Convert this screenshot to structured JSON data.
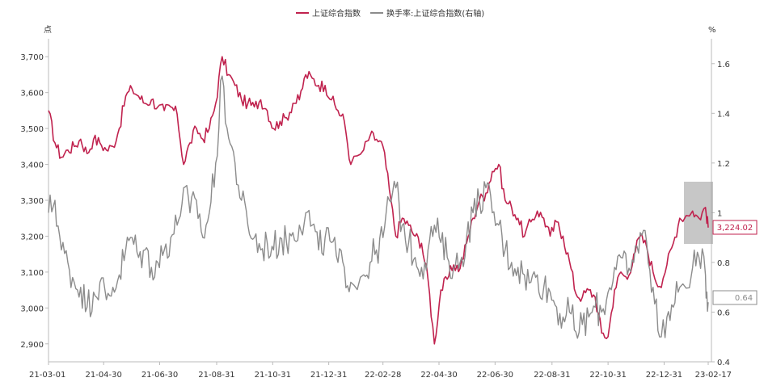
{
  "chart_data": {
    "type": "line",
    "legend_position": "top-center",
    "grid": false,
    "left_axis": {
      "unit": "点",
      "ylim": [
        2850,
        3750
      ],
      "ticks": [
        2900,
        3000,
        3100,
        3200,
        3300,
        3400,
        3500,
        3600,
        3700
      ],
      "tick_labels": [
        "2,900",
        "3,000",
        "3,100",
        "3,200",
        "3,300",
        "3,400",
        "3,500",
        "3,600",
        "3,700"
      ]
    },
    "right_axis": {
      "unit": "%",
      "ylim": [
        0.4,
        1.7
      ],
      "ticks": [
        0.4,
        0.6,
        0.8,
        1.0,
        1.2,
        1.4,
        1.6
      ],
      "tick_labels": [
        "0.4",
        "0.6",
        "0.8",
        "1",
        "1.2",
        "1.4",
        "1.6"
      ]
    },
    "x_tick_labels": [
      "21-03-01",
      "21-04-30",
      "21-06-30",
      "21-08-31",
      "21-10-31",
      "21-12-31",
      "22-02-28",
      "22-04-30",
      "22-06-30",
      "22-08-31",
      "22-10-31",
      "22-12-31",
      "23-02-17"
    ],
    "x_tick_dates": [
      "2021-03-01",
      "2021-04-30",
      "2021-06-30",
      "2021-08-31",
      "2021-10-31",
      "2021-12-31",
      "2022-02-28",
      "2022-04-30",
      "2022-06-30",
      "2022-08-31",
      "2022-10-31",
      "2022-12-31",
      "2023-02-17"
    ],
    "series": [
      {
        "name": "上证综合指数",
        "axis": "left",
        "color": "#c0224e",
        "last_value_label": "3,224.02",
        "points": [
          [
            "2021-03-01",
            3550
          ],
          [
            "2021-03-08",
            3460
          ],
          [
            "2021-03-15",
            3420
          ],
          [
            "2021-03-22",
            3440
          ],
          [
            "2021-03-29",
            3450
          ],
          [
            "2021-04-05",
            3470
          ],
          [
            "2021-04-12",
            3430
          ],
          [
            "2021-04-19",
            3470
          ],
          [
            "2021-04-26",
            3460
          ],
          [
            "2021-05-03",
            3440
          ],
          [
            "2021-05-10",
            3450
          ],
          [
            "2021-05-17",
            3500
          ],
          [
            "2021-05-24",
            3590
          ],
          [
            "2021-05-31",
            3610
          ],
          [
            "2021-06-07",
            3590
          ],
          [
            "2021-06-14",
            3570
          ],
          [
            "2021-06-21",
            3580
          ],
          [
            "2021-06-28",
            3560
          ],
          [
            "2021-07-05",
            3550
          ],
          [
            "2021-07-12",
            3560
          ],
          [
            "2021-07-19",
            3540
          ],
          [
            "2021-07-26",
            3400
          ],
          [
            "2021-08-02",
            3460
          ],
          [
            "2021-08-09",
            3500
          ],
          [
            "2021-08-16",
            3470
          ],
          [
            "2021-08-23",
            3500
          ],
          [
            "2021-08-30",
            3570
          ],
          [
            "2021-09-06",
            3700
          ],
          [
            "2021-09-13",
            3650
          ],
          [
            "2021-09-20",
            3620
          ],
          [
            "2021-09-27",
            3580
          ],
          [
            "2021-10-04",
            3570
          ],
          [
            "2021-10-11",
            3560
          ],
          [
            "2021-10-18",
            3580
          ],
          [
            "2021-10-25",
            3550
          ],
          [
            "2021-11-01",
            3500
          ],
          [
            "2021-11-08",
            3520
          ],
          [
            "2021-11-15",
            3530
          ],
          [
            "2021-11-22",
            3570
          ],
          [
            "2021-11-29",
            3580
          ],
          [
            "2021-12-06",
            3650
          ],
          [
            "2021-12-13",
            3640
          ],
          [
            "2021-12-20",
            3620
          ],
          [
            "2021-12-27",
            3620
          ],
          [
            "2022-01-03",
            3580
          ],
          [
            "2022-01-10",
            3550
          ],
          [
            "2022-01-17",
            3520
          ],
          [
            "2022-01-24",
            3400
          ],
          [
            "2022-02-07",
            3440
          ],
          [
            "2022-02-14",
            3480
          ],
          [
            "2022-02-21",
            3470
          ],
          [
            "2022-02-28",
            3450
          ],
          [
            "2022-03-07",
            3330
          ],
          [
            "2022-03-14",
            3200
          ],
          [
            "2022-03-21",
            3250
          ],
          [
            "2022-03-28",
            3230
          ],
          [
            "2022-04-04",
            3200
          ],
          [
            "2022-04-11",
            3180
          ],
          [
            "2022-04-18",
            3080
          ],
          [
            "2022-04-25",
            2900
          ],
          [
            "2022-05-02",
            3050
          ],
          [
            "2022-05-09",
            3080
          ],
          [
            "2022-05-16",
            3120
          ],
          [
            "2022-05-23",
            3110
          ],
          [
            "2022-05-30",
            3180
          ],
          [
            "2022-06-06",
            3250
          ],
          [
            "2022-06-13",
            3300
          ],
          [
            "2022-06-20",
            3320
          ],
          [
            "2022-06-27",
            3380
          ],
          [
            "2022-07-04",
            3400
          ],
          [
            "2022-07-11",
            3300
          ],
          [
            "2022-07-18",
            3280
          ],
          [
            "2022-07-25",
            3250
          ],
          [
            "2022-08-01",
            3200
          ],
          [
            "2022-08-08",
            3240
          ],
          [
            "2022-08-15",
            3270
          ],
          [
            "2022-08-22",
            3250
          ],
          [
            "2022-08-29",
            3200
          ],
          [
            "2022-09-05",
            3240
          ],
          [
            "2022-09-12",
            3200
          ],
          [
            "2022-09-19",
            3130
          ],
          [
            "2022-09-26",
            3040
          ],
          [
            "2022-10-03",
            3030
          ],
          [
            "2022-10-10",
            3050
          ],
          [
            "2022-10-17",
            3030
          ],
          [
            "2022-10-24",
            2930
          ],
          [
            "2022-10-31",
            2920
          ],
          [
            "2022-11-07",
            3050
          ],
          [
            "2022-11-14",
            3100
          ],
          [
            "2022-11-21",
            3080
          ],
          [
            "2022-11-28",
            3150
          ],
          [
            "2022-12-05",
            3200
          ],
          [
            "2022-12-12",
            3170
          ],
          [
            "2022-12-19",
            3100
          ],
          [
            "2022-12-26",
            3060
          ],
          [
            "2023-01-03",
            3120
          ],
          [
            "2023-01-10",
            3180
          ],
          [
            "2023-01-17",
            3250
          ],
          [
            "2023-01-31",
            3270
          ],
          [
            "2023-02-07",
            3250
          ],
          [
            "2023-02-14",
            3280
          ],
          [
            "2023-02-17",
            3224.02
          ]
        ]
      },
      {
        "name": "换手率:上证综合指数(右轴)",
        "axis": "right",
        "color": "#8c8c8c",
        "last_value_label": "0.64",
        "points": [
          [
            "2021-03-01",
            1.0
          ],
          [
            "2021-03-08",
            1.05
          ],
          [
            "2021-03-15",
            0.85
          ],
          [
            "2021-03-22",
            0.8
          ],
          [
            "2021-03-29",
            0.72
          ],
          [
            "2021-04-05",
            0.7
          ],
          [
            "2021-04-12",
            0.62
          ],
          [
            "2021-04-19",
            0.68
          ],
          [
            "2021-04-26",
            0.72
          ],
          [
            "2021-05-03",
            0.65
          ],
          [
            "2021-05-10",
            0.7
          ],
          [
            "2021-05-17",
            0.75
          ],
          [
            "2021-05-24",
            0.85
          ],
          [
            "2021-05-31",
            0.9
          ],
          [
            "2021-06-07",
            0.82
          ],
          [
            "2021-06-14",
            0.85
          ],
          [
            "2021-06-21",
            0.78
          ],
          [
            "2021-06-28",
            0.8
          ],
          [
            "2021-07-05",
            0.85
          ],
          [
            "2021-07-12",
            0.9
          ],
          [
            "2021-07-19",
            0.95
          ],
          [
            "2021-07-26",
            1.1
          ],
          [
            "2021-08-02",
            1.0
          ],
          [
            "2021-08-09",
            1.05
          ],
          [
            "2021-08-16",
            0.9
          ],
          [
            "2021-08-23",
            1.0
          ],
          [
            "2021-08-30",
            1.2
          ],
          [
            "2021-09-06",
            1.55
          ],
          [
            "2021-09-13",
            1.3
          ],
          [
            "2021-09-20",
            1.2
          ],
          [
            "2021-09-27",
            1.05
          ],
          [
            "2021-10-04",
            0.95
          ],
          [
            "2021-10-11",
            0.9
          ],
          [
            "2021-10-18",
            0.85
          ],
          [
            "2021-10-25",
            0.88
          ],
          [
            "2021-11-01",
            0.85
          ],
          [
            "2021-11-08",
            0.9
          ],
          [
            "2021-11-15",
            0.88
          ],
          [
            "2021-11-22",
            0.92
          ],
          [
            "2021-11-29",
            0.95
          ],
          [
            "2021-12-06",
            1.0
          ],
          [
            "2021-12-13",
            0.95
          ],
          [
            "2021-12-20",
            0.85
          ],
          [
            "2021-12-27",
            0.9
          ],
          [
            "2022-01-03",
            0.88
          ],
          [
            "2022-01-10",
            0.8
          ],
          [
            "2022-01-17",
            0.78
          ],
          [
            "2022-01-24",
            0.72
          ],
          [
            "2022-02-07",
            0.75
          ],
          [
            "2022-02-14",
            0.8
          ],
          [
            "2022-02-21",
            0.85
          ],
          [
            "2022-02-28",
            0.9
          ],
          [
            "2022-03-07",
            1.05
          ],
          [
            "2022-03-14",
            1.1
          ],
          [
            "2022-03-21",
            0.95
          ],
          [
            "2022-03-28",
            0.88
          ],
          [
            "2022-04-04",
            0.82
          ],
          [
            "2022-04-11",
            0.78
          ],
          [
            "2022-04-18",
            0.85
          ],
          [
            "2022-04-25",
            0.95
          ],
          [
            "2022-05-02",
            0.88
          ],
          [
            "2022-05-09",
            0.82
          ],
          [
            "2022-05-16",
            0.78
          ],
          [
            "2022-05-23",
            0.8
          ],
          [
            "2022-05-30",
            0.9
          ],
          [
            "2022-06-06",
            1.0
          ],
          [
            "2022-06-13",
            1.05
          ],
          [
            "2022-06-20",
            1.1
          ],
          [
            "2022-06-27",
            1.0
          ],
          [
            "2022-07-04",
            0.95
          ],
          [
            "2022-07-11",
            0.85
          ],
          [
            "2022-07-18",
            0.8
          ],
          [
            "2022-07-25",
            0.78
          ],
          [
            "2022-08-01",
            0.75
          ],
          [
            "2022-08-08",
            0.72
          ],
          [
            "2022-08-15",
            0.75
          ],
          [
            "2022-08-22",
            0.7
          ],
          [
            "2022-08-29",
            0.68
          ],
          [
            "2022-09-05",
            0.62
          ],
          [
            "2022-09-12",
            0.58
          ],
          [
            "2022-09-19",
            0.6
          ],
          [
            "2022-09-26",
            0.52
          ],
          [
            "2022-10-03",
            0.55
          ],
          [
            "2022-10-10",
            0.58
          ],
          [
            "2022-10-17",
            0.62
          ],
          [
            "2022-10-24",
            0.6
          ],
          [
            "2022-10-31",
            0.68
          ],
          [
            "2022-11-07",
            0.78
          ],
          [
            "2022-11-14",
            0.82
          ],
          [
            "2022-11-21",
            0.75
          ],
          [
            "2022-11-28",
            0.8
          ],
          [
            "2022-12-05",
            0.92
          ],
          [
            "2022-12-12",
            0.88
          ],
          [
            "2022-12-19",
            0.7
          ],
          [
            "2022-12-26",
            0.5
          ],
          [
            "2023-01-03",
            0.58
          ],
          [
            "2023-01-10",
            0.62
          ],
          [
            "2023-01-17",
            0.7
          ],
          [
            "2023-01-31",
            0.78
          ],
          [
            "2023-02-07",
            0.82
          ],
          [
            "2023-02-14",
            0.75
          ],
          [
            "2023-02-17",
            0.64
          ]
        ]
      }
    ]
  }
}
